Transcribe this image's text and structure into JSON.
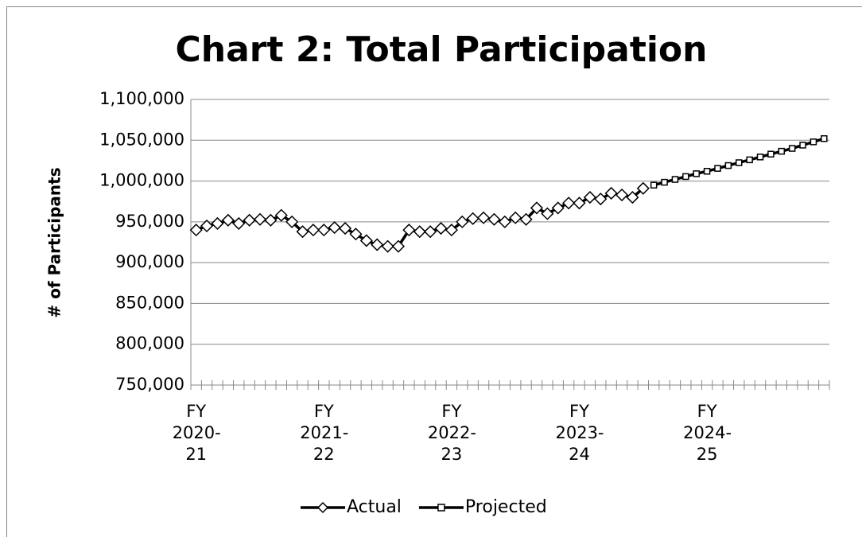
{
  "chart_data": {
    "type": "line",
    "title": "Chart 2: Total Participation",
    "y_label": "# of Participants",
    "categories": [
      "FY 2020-21",
      null,
      null,
      null,
      null,
      null,
      null,
      null,
      null,
      null,
      null,
      null,
      "FY 2021-22",
      null,
      null,
      null,
      null,
      null,
      null,
      null,
      null,
      null,
      null,
      null,
      "FY 2022-23",
      null,
      null,
      null,
      null,
      null,
      null,
      null,
      null,
      null,
      null,
      null,
      "FY 2023-24",
      null,
      null,
      null,
      null,
      null,
      null,
      null,
      null,
      null,
      null,
      null,
      "FY 2024-25",
      null,
      null,
      null,
      null,
      null,
      null,
      null,
      null,
      null,
      null,
      null
    ],
    "series": [
      {
        "name": "Actual",
        "color": "#000000",
        "marker": "diamond",
        "values": [
          940000,
          945000,
          948000,
          952000,
          948000,
          952000,
          953000,
          952000,
          958000,
          950000,
          938000,
          940000,
          940000,
          943000,
          942000,
          935000,
          927000,
          922000,
          920000,
          920000,
          940000,
          938000,
          938000,
          942000,
          940000,
          950000,
          954000,
          955000,
          953000,
          950000,
          955000,
          953000,
          967000,
          960000,
          967000,
          973000,
          973000,
          980000,
          978000,
          985000,
          983000,
          980000,
          991000,
          null,
          null,
          null,
          null,
          null,
          null,
          null,
          null,
          null,
          null,
          null,
          null,
          null,
          null,
          null,
          null,
          null
        ]
      },
      {
        "name": "Projected",
        "color": "#000000",
        "marker": "square",
        "values": [
          null,
          null,
          null,
          null,
          null,
          null,
          null,
          null,
          null,
          null,
          null,
          null,
          null,
          null,
          null,
          null,
          null,
          null,
          null,
          null,
          null,
          null,
          null,
          null,
          null,
          null,
          null,
          null,
          null,
          null,
          null,
          null,
          null,
          null,
          null,
          null,
          null,
          null,
          null,
          null,
          null,
          null,
          null,
          995000,
          998500,
          1002000,
          1005500,
          1009000,
          1012000,
          1015500,
          1019000,
          1022500,
          1026000,
          1029500,
          1033000,
          1036500,
          1040000,
          1044000,
          1048000,
          1052000
        ]
      }
    ],
    "ylim": [
      750000,
      1100000
    ],
    "yticks": [
      {
        "value": 750000,
        "label": "750,000"
      },
      {
        "value": 800000,
        "label": "800,000"
      },
      {
        "value": 850000,
        "label": "850,000"
      },
      {
        "value": 900000,
        "label": "900,000"
      },
      {
        "value": 950000,
        "label": "950,000"
      },
      {
        "value": 1000000,
        "label": "1,000,000"
      },
      {
        "value": 1050000,
        "label": "1,050,000"
      },
      {
        "value": 1100000,
        "label": "1,100,000"
      }
    ],
    "grid": true,
    "legend": "bottom"
  }
}
